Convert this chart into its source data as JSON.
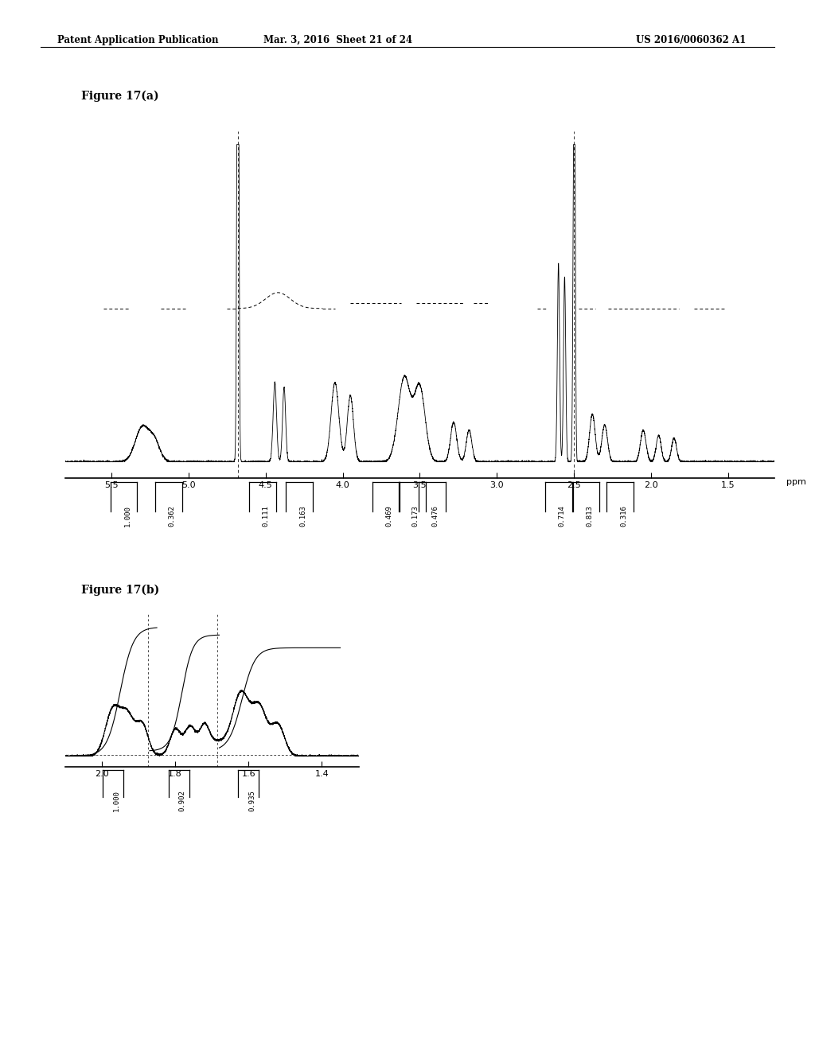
{
  "header_left": "Patent Application Publication",
  "header_mid": "Mar. 3, 2016  Sheet 21 of 24",
  "header_right": "US 2016/0060362 A1",
  "fig_a_label": "Figure 17(a)",
  "fig_b_label": "Figure 17(b)",
  "background_color": "#ffffff",
  "text_color": "#000000",
  "fig_a_xticks": [
    5.5,
    5.0,
    4.5,
    4.0,
    3.5,
    3.0,
    2.5,
    2.0,
    1.5
  ],
  "fig_b_xticks": [
    2.0,
    1.8,
    1.6,
    1.4
  ],
  "brackets_a": [
    [
      5.42,
      "1.000"
    ],
    [
      5.13,
      "0.362"
    ],
    [
      4.52,
      "0.111"
    ],
    [
      4.28,
      "0.163"
    ],
    [
      3.72,
      "0.469"
    ],
    [
      3.55,
      "0.173"
    ],
    [
      3.42,
      "0.476"
    ],
    [
      2.6,
      "0.714"
    ],
    [
      2.42,
      "0.813"
    ],
    [
      2.2,
      "0.316"
    ]
  ],
  "brackets_b": [
    [
      1.97,
      "1.000"
    ],
    [
      1.79,
      "0.902"
    ],
    [
      1.6,
      "0.935"
    ]
  ]
}
